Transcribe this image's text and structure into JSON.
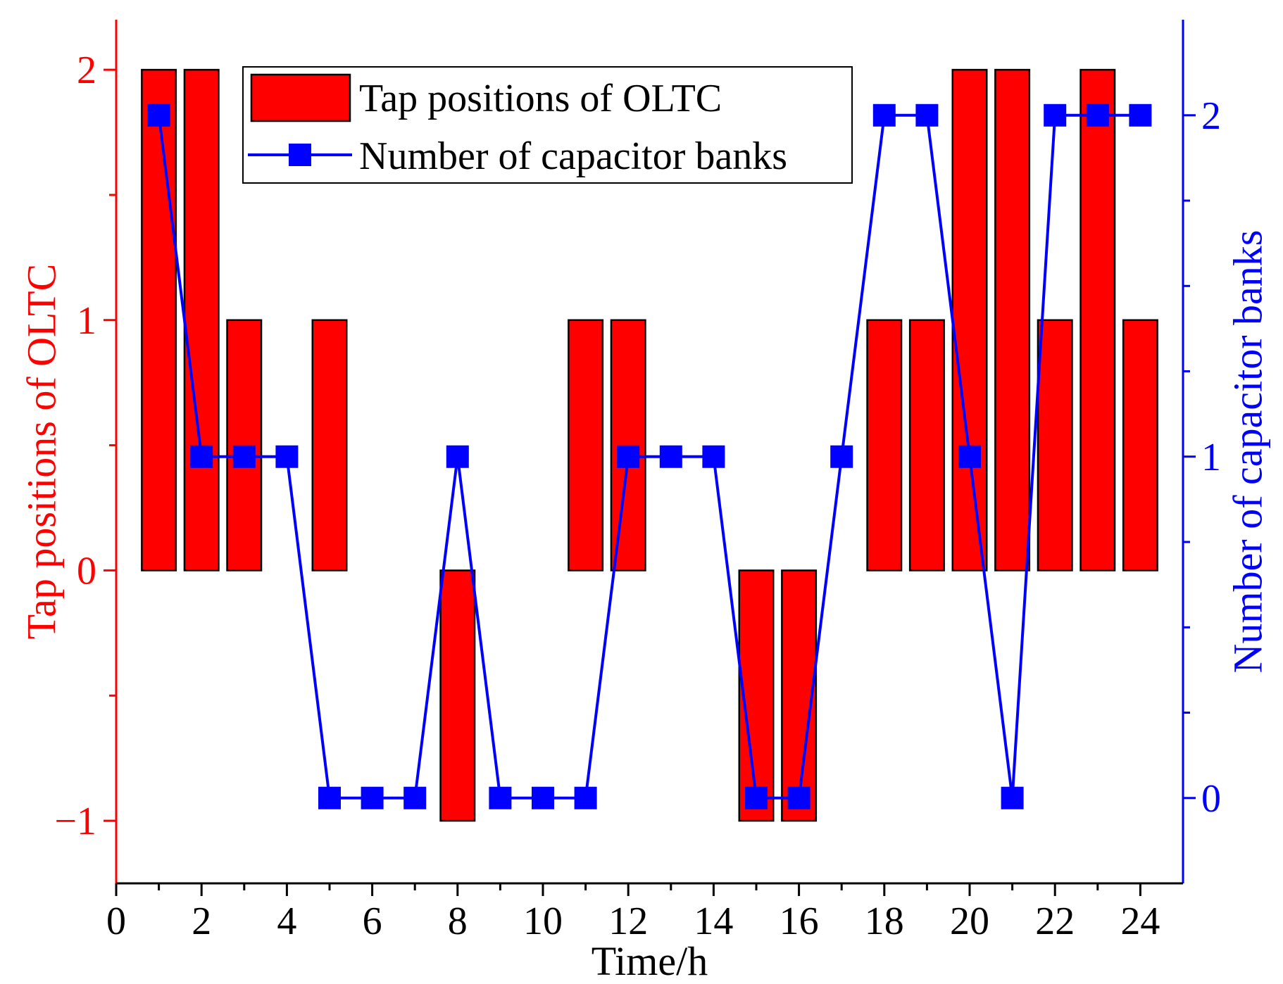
{
  "chart_data": {
    "type": "bar",
    "x": [
      1,
      2,
      3,
      4,
      5,
      6,
      7,
      8,
      9,
      10,
      11,
      12,
      13,
      14,
      15,
      16,
      17,
      18,
      19,
      20,
      21,
      22,
      23,
      24
    ],
    "xlabel": "Time/h",
    "xlim": [
      0,
      25
    ],
    "xticks": [
      "0",
      "2",
      "4",
      "6",
      "8",
      "10",
      "12",
      "14",
      "16",
      "18",
      "20",
      "22",
      "24"
    ],
    "ylabel_left": "Tap positions of OLTC",
    "ylim_left": [
      -1.25,
      2.2
    ],
    "yticks_left": [
      "−1",
      "0",
      "1",
      "2"
    ],
    "ylabel_right": "Number of capacitor banks",
    "ylim_right": [
      -0.25,
      2.28
    ],
    "yticks_right": [
      "0",
      "1",
      "2"
    ],
    "grid": false,
    "legend_placement": "top-center",
    "series": [
      {
        "name": "Tap positions of OLTC",
        "type": "bar",
        "axis": "left",
        "color": "#ff0000",
        "values": [
          2,
          2,
          1,
          0,
          1,
          0,
          0,
          -1,
          0,
          0,
          1,
          1,
          0,
          0,
          -1,
          -1,
          0,
          1,
          1,
          2,
          2,
          1,
          2,
          1
        ]
      },
      {
        "name": "Number of capacitor banks",
        "type": "line",
        "axis": "right",
        "color": "#0000ff",
        "marker": "square",
        "values": [
          2,
          1,
          1,
          1,
          0,
          0,
          0,
          1,
          0,
          0,
          0,
          1,
          1,
          1,
          0,
          0,
          1,
          2,
          2,
          1,
          0,
          2,
          2,
          2
        ]
      }
    ],
    "colors": {
      "left_axis": "#ff0000",
      "right_axis": "#0000ff",
      "bottom_axis": "#000000"
    }
  }
}
